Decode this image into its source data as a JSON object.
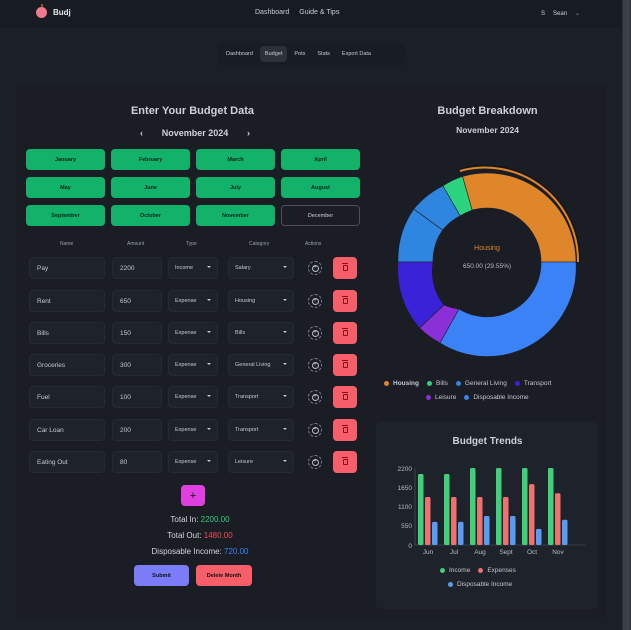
{
  "header": {
    "app_name": "Budj",
    "nav": [
      "Dashboard",
      "Guide & Tips"
    ],
    "user_initial": "S",
    "user_name": "Sean"
  },
  "subnav": {
    "items": [
      "Dashboard",
      "Budget",
      "Pots",
      "Stats",
      "Export Data"
    ],
    "active": "Budget"
  },
  "entry": {
    "title": "Enter Your Budget Data",
    "month_label": "November 2024",
    "prev_icon": "chevron-left-icon",
    "next_icon": "chevron-right-icon",
    "months": [
      "January",
      "February",
      "March",
      "April",
      "May",
      "June",
      "July",
      "August",
      "September",
      "October",
      "November",
      "December"
    ],
    "columns": [
      "Name",
      "Amount",
      "Type",
      "Category",
      "Actions"
    ],
    "rows": [
      {
        "name": "Pay",
        "amount": "2200",
        "type": "Income",
        "category": "Salary"
      },
      {
        "name": "Rent",
        "amount": "650",
        "type": "Expense",
        "category": "Housing"
      },
      {
        "name": "Bills",
        "amount": "150",
        "type": "Expense",
        "category": "Bills"
      },
      {
        "name": "Groceries",
        "amount": "300",
        "type": "Expense",
        "category": "General Living"
      },
      {
        "name": "Fuel",
        "amount": "100",
        "type": "Expense",
        "category": "Transport"
      },
      {
        "name": "Car Loan",
        "amount": "200",
        "type": "Expense",
        "category": "Transport"
      },
      {
        "name": "Eating Out",
        "amount": "80",
        "type": "Expense",
        "category": "Leisure"
      }
    ],
    "add_label": "+",
    "total_in_label": "Total In:",
    "total_in": "2200.00",
    "total_out_label": "Total Out:",
    "total_out": "1480.00",
    "disposable_label": "Disposable Income:",
    "disposable": "720.00",
    "submit_label": "Submit",
    "delete_label": "Delete Month"
  },
  "breakdown": {
    "title": "Budget Breakdown",
    "subtitle": "November 2024",
    "center_label": "Housing",
    "center_value": "650.00 (29.55%)",
    "legend": [
      "Housing",
      "Bills",
      "General Living",
      "Transport",
      "Leisure",
      "Disposable Income"
    ]
  },
  "trends": {
    "title": "Budget Trends",
    "legend": [
      "Income",
      "Expenses",
      "Disposable Income"
    ]
  },
  "colors": {
    "housing": "#e0862a",
    "bills": "#2dd47f",
    "general_living": "#2f86e0",
    "transport": "#3a22d8",
    "leisure": "#8b2fd6",
    "disposable": "#3b82f6",
    "income": "#3fd07a",
    "expenses": "#f07070",
    "disp_bar": "#5a9cf2"
  },
  "chart_data": [
    {
      "type": "pie",
      "title": "Budget Breakdown",
      "subtitle": "November 2024",
      "categories": [
        "Housing",
        "Bills",
        "General Living",
        "Transport",
        "Leisure",
        "Disposable Income"
      ],
      "values": [
        650,
        150,
        300,
        300,
        80,
        720
      ],
      "donut": true,
      "highlighted": "Housing",
      "legend_position": "bottom"
    },
    {
      "type": "bar",
      "title": "Budget Trends",
      "categories": [
        "Jun",
        "Jul",
        "Aug",
        "Sept",
        "Oct",
        "Nov"
      ],
      "series": [
        {
          "name": "Income",
          "values": [
            2030,
            2030,
            2200,
            2200,
            2200,
            2200
          ]
        },
        {
          "name": "Expenses",
          "values": [
            1370,
            1370,
            1370,
            1370,
            1740,
            1480
          ]
        },
        {
          "name": "Disposable Income",
          "values": [
            660,
            660,
            830,
            830,
            460,
            720
          ]
        }
      ],
      "yticks": [
        0,
        550,
        1100,
        1650,
        2200
      ],
      "ylim": [
        0,
        2200
      ],
      "legend_position": "bottom"
    }
  ]
}
